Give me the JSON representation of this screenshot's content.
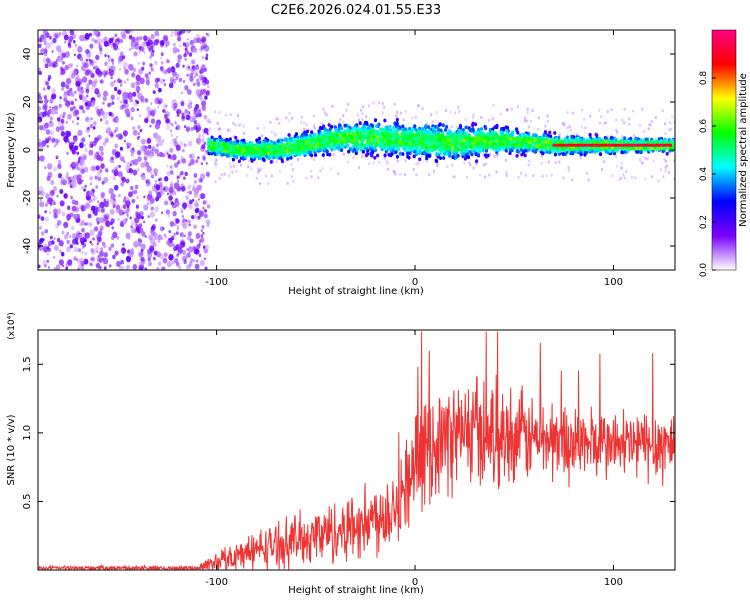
{
  "title": "C2E6.2026.024.01.55.E33",
  "chart_data": [
    {
      "type": "heatmap",
      "xlabel": "Height of straight line (km)",
      "ylabel": "Frequency (Hz)",
      "xlim": [
        -190,
        131
      ],
      "ylim": [
        -50,
        50
      ],
      "x_ticks": [
        -100,
        0,
        100
      ],
      "y_ticks": [
        -40,
        -20,
        0,
        20,
        40
      ],
      "colorbar": {
        "label": "Normalized spectral amplitude",
        "range": [
          0,
          1
        ],
        "ticks": [
          "0.0",
          "0.2",
          "0.4",
          "0.6",
          "0.8"
        ],
        "colors": [
          "#ffffff",
          "#7a00ff",
          "#0000ff",
          "#00ffff",
          "#00ff00",
          "#ffff00",
          "#ff0000",
          "#ff0080"
        ]
      },
      "noise_region_x": [
        -190,
        -104
      ],
      "signal_band_x": [
        -104,
        131
      ],
      "signal_center_hz": [
        [
          -104,
          2
        ],
        [
          -90,
          0
        ],
        [
          -70,
          0
        ],
        [
          -55,
          2
        ],
        [
          -40,
          5
        ],
        [
          -20,
          5
        ],
        [
          0,
          4
        ],
        [
          20,
          3
        ],
        [
          40,
          4
        ],
        [
          60,
          3
        ],
        [
          70,
          2
        ],
        [
          131,
          2
        ]
      ],
      "signal_halfwidth_hz": [
        [
          -104,
          5
        ],
        [
          -60,
          7
        ],
        [
          -20,
          9
        ],
        [
          20,
          10
        ],
        [
          60,
          6
        ],
        [
          131,
          4
        ]
      ],
      "peak_segment_x": [
        70,
        130
      ],
      "peak_level": 0.95
    },
    {
      "type": "line",
      "xlabel": "Height of straight line (km)",
      "ylabel": "SNR (10 * v/v)",
      "y_scale_label": "(x10⁴)",
      "xlim": [
        -190,
        131
      ],
      "ylim": [
        0,
        17500
      ],
      "x_ticks": [
        -100,
        0,
        100
      ],
      "y_ticks": [
        "0.5",
        "1.0",
        "1.5"
      ],
      "y_tick_values": [
        5000,
        10000,
        15000
      ],
      "color": "#ee3333",
      "envelope": [
        [
          -190,
          150
        ],
        [
          -110,
          150
        ],
        [
          -100,
          600
        ],
        [
          -80,
          1500
        ],
        [
          -60,
          2200
        ],
        [
          -40,
          2800
        ],
        [
          -20,
          3800
        ],
        [
          -10,
          4800
        ],
        [
          0,
          7500
        ],
        [
          10,
          9300
        ],
        [
          20,
          9800
        ],
        [
          30,
          10200
        ],
        [
          50,
          9800
        ],
        [
          80,
          9300
        ],
        [
          100,
          9100
        ],
        [
          131,
          9200
        ]
      ],
      "noise_amplitude": [
        [
          -190,
          150
        ],
        [
          -110,
          150
        ],
        [
          -100,
          800
        ],
        [
          -60,
          1800
        ],
        [
          -20,
          2600
        ],
        [
          0,
          3400
        ],
        [
          30,
          4000
        ],
        [
          60,
          3000
        ],
        [
          100,
          2400
        ],
        [
          131,
          2800
        ]
      ],
      "max_value": 17400
    }
  ]
}
